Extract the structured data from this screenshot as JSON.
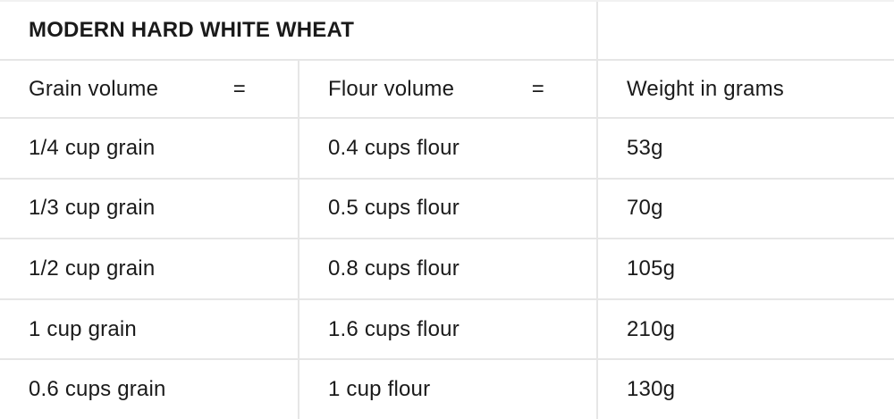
{
  "table": {
    "title": "MODERN HARD WHITE WHEAT",
    "header": {
      "grain_label": "Grain volume",
      "grain_equals": "=",
      "flour_label": "Flour volume",
      "flour_equals": "=",
      "weight_label": "Weight in grams"
    },
    "rows": [
      {
        "grain": "1/4 cup grain",
        "flour": "0.4 cups flour",
        "weight": "53g"
      },
      {
        "grain": "1/3 cup grain",
        "flour": "0.5 cups flour",
        "weight": "70g"
      },
      {
        "grain": "1/2 cup grain",
        "flour": "0.8 cups flour",
        "weight": "105g"
      },
      {
        "grain": "1 cup grain",
        "flour": "1.6 cups flour",
        "weight": "210g"
      },
      {
        "grain": "0.6 cups grain",
        "flour": "1 cup flour",
        "weight": "130g"
      }
    ],
    "colors": {
      "border": "#e6e6e6",
      "text": "#1a1a1a",
      "background": "#ffffff"
    }
  }
}
